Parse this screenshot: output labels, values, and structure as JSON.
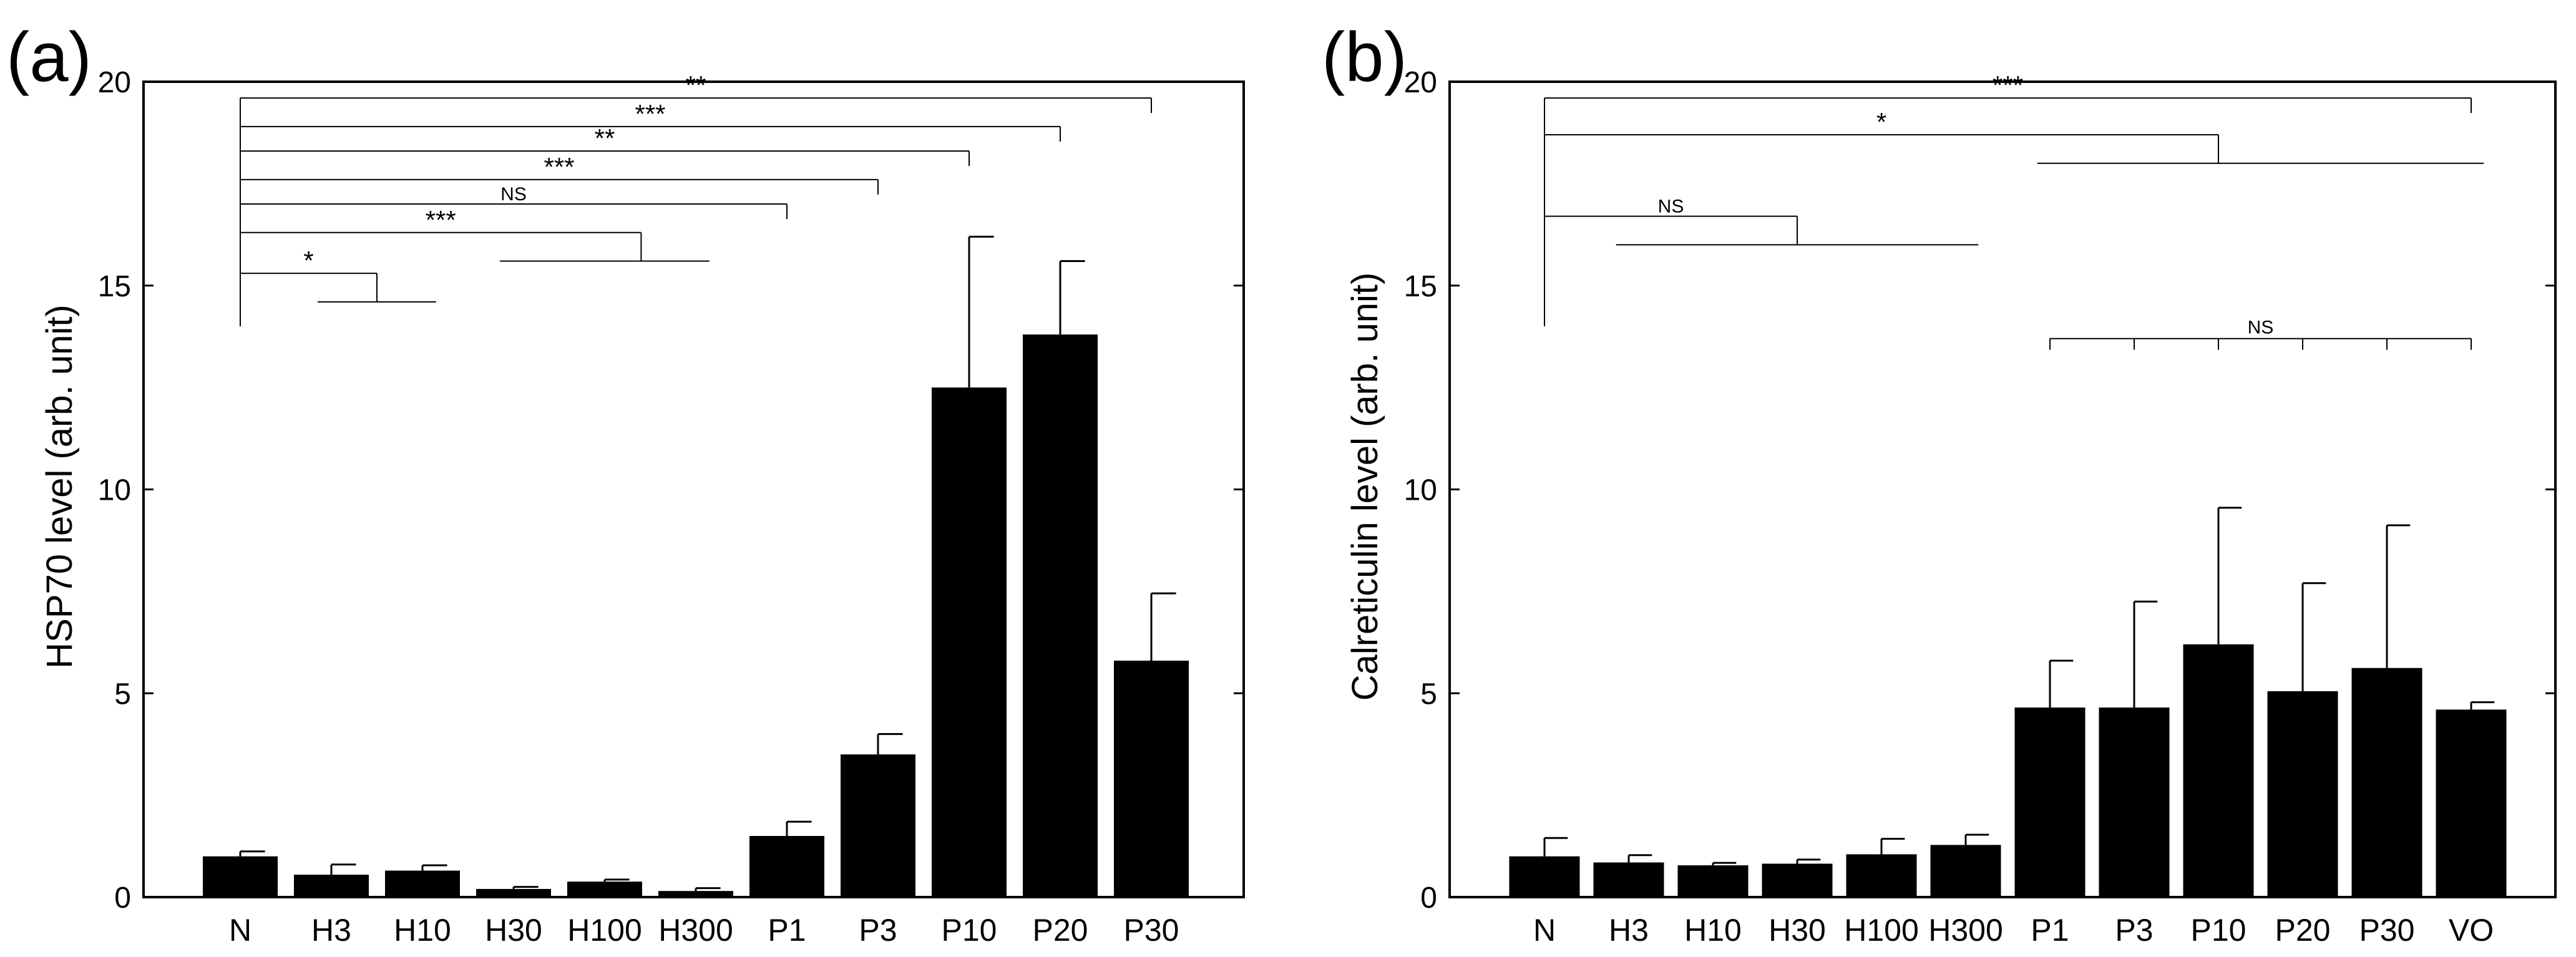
{
  "chart_data": [
    {
      "panel_label": "(a)",
      "type": "bar",
      "ylabel": "HSP70 level (arb. unit)",
      "ylim": [
        0,
        20
      ],
      "yticks": [
        0,
        5,
        10,
        15,
        20
      ],
      "categories": [
        "N",
        "H3",
        "H10",
        "H30",
        "H100",
        "H300",
        "P1",
        "P3",
        "P10",
        "P20",
        "P30"
      ],
      "values": [
        1.0,
        0.55,
        0.65,
        0.2,
        0.38,
        0.15,
        1.5,
        3.5,
        12.5,
        13.8,
        5.8
      ],
      "errors": [
        0.12,
        0.25,
        0.13,
        0.05,
        0.05,
        0.07,
        0.35,
        0.5,
        3.7,
        1.8,
        1.65
      ],
      "annotations": [
        {
          "label": "**",
          "from": 0,
          "to": 10,
          "y": 19.6,
          "ref_group": [
            10
          ]
        },
        {
          "label": "***",
          "from": 0,
          "to": 9,
          "y": 18.9,
          "ref_group": [
            9
          ]
        },
        {
          "label": "**",
          "from": 0,
          "to": 8,
          "y": 18.3,
          "ref_group": [
            8
          ]
        },
        {
          "label": "***",
          "from": 0,
          "to": 7,
          "y": 17.6,
          "ref_group": [
            7
          ]
        },
        {
          "label": "NS",
          "from": 0,
          "to": 6,
          "y": 17.0,
          "ref_group": [
            6
          ]
        },
        {
          "label": "***",
          "from": 0,
          "to": 4.4,
          "y": 16.3,
          "ref_group": [
            3,
            5
          ]
        },
        {
          "label": "*",
          "from": 0,
          "to": 1.5,
          "y": 15.3,
          "ref_group": [
            1,
            2
          ]
        }
      ],
      "ref_start_y": 14.0
    },
    {
      "panel_label": "(b)",
      "type": "bar",
      "ylabel": "Calreticulin level (arb. unit)",
      "ylim": [
        0,
        20
      ],
      "yticks": [
        0,
        5,
        10,
        15,
        20
      ],
      "categories": [
        "N",
        "H3",
        "H10",
        "H30",
        "H100",
        "H300",
        "P1",
        "P3",
        "P10",
        "P20",
        "P30",
        "VO"
      ],
      "values": [
        1.0,
        0.85,
        0.78,
        0.82,
        1.05,
        1.28,
        4.65,
        4.65,
        6.2,
        5.05,
        5.62,
        4.6
      ],
      "errors": [
        0.45,
        0.18,
        0.06,
        0.1,
        0.38,
        0.25,
        1.15,
        2.6,
        3.35,
        2.65,
        3.5,
        0.18
      ],
      "annotations": [
        {
          "label": "***",
          "from": 0,
          "to": 11,
          "y": 19.6,
          "ref_group": [
            11
          ]
        },
        {
          "label": "*",
          "from": 0,
          "to": 8,
          "y": 18.7,
          "ref_group": [
            6,
            11
          ]
        },
        {
          "label": "NS",
          "from": 0,
          "to": 3,
          "y": 16.7,
          "ref_group": [
            1,
            5
          ]
        }
      ],
      "group_annotation": {
        "label": "NS",
        "from": 6,
        "to": 11,
        "y": 13.7
      },
      "ref_start_y": 14.0
    }
  ]
}
